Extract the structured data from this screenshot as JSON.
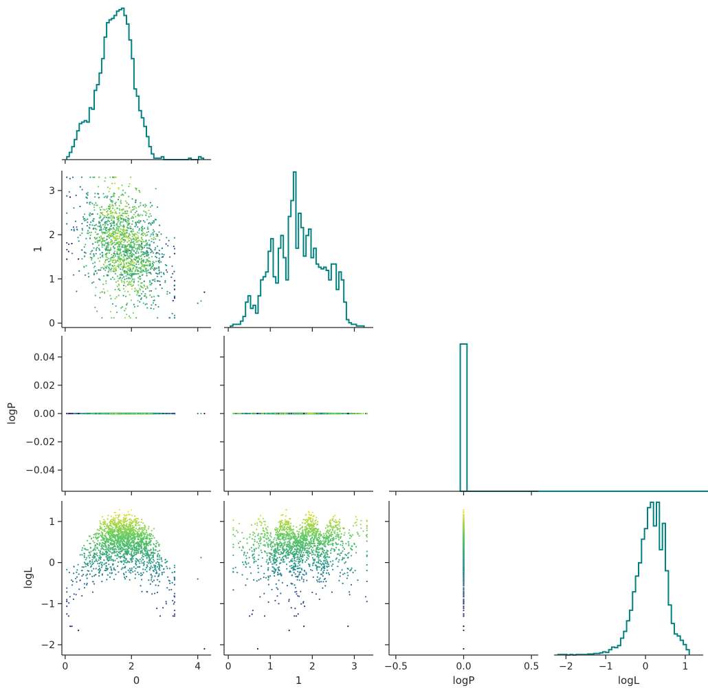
{
  "chart_data": {
    "type": "corner-pairplot",
    "variables": [
      "0",
      "1",
      "logP",
      "logL"
    ],
    "axis_labels": {
      "x": [
        "0",
        "1",
        "logP",
        "logL"
      ],
      "y": [
        "",
        "1",
        "logP",
        "logL"
      ]
    },
    "ranges": {
      "v0": [
        -0.1,
        4.4
      ],
      "v1": [
        -0.1,
        3.45
      ],
      "logP": [
        -0.055,
        0.055
      ],
      "logP_hist_x": [
        -0.55,
        0.55
      ],
      "logL": [
        -2.25,
        1.5
      ],
      "logL_hist_x": [
        -2.3,
        1.45
      ]
    },
    "ticks": {
      "v0": [
        0,
        2,
        4
      ],
      "v1": [
        0,
        1,
        2,
        3
      ],
      "logP": [
        -0.04,
        -0.02,
        0.0,
        0.02,
        0.04
      ],
      "logP_hist_x": [
        -0.5,
        0.0,
        0.5
      ],
      "logL": [
        -2,
        -1,
        0,
        1
      ]
    },
    "tick_labels": {
      "v0": [
        "0",
        "2",
        "4"
      ],
      "v1": [
        "0",
        "1",
        "2",
        "3"
      ],
      "logP": [
        "−0.04",
        "−0.02",
        "0.00",
        "0.02",
        "0.04"
      ],
      "logP_hist_x": [
        "−0.5",
        "0.0",
        "0.5"
      ],
      "logL": [
        "−2",
        "−1",
        "0",
        "1"
      ]
    },
    "histograms": {
      "v0": {
        "x0": 0.05,
        "width": 0.075,
        "counts": [
          2,
          5,
          9,
          14,
          20,
          25,
          26,
          27,
          26,
          36,
          35,
          48,
          52,
          60,
          70,
          85,
          95,
          97,
          98,
          100,
          103,
          104,
          105,
          100,
          94,
          83,
          70,
          49,
          44,
          34,
          29,
          23,
          16,
          9,
          4,
          1,
          1,
          1,
          2,
          0,
          0,
          0,
          0,
          0,
          0,
          0,
          0,
          0,
          0,
          1,
          0,
          0,
          0,
          2,
          1
        ]
      },
      "v1": {
        "x0": 0.05,
        "width": 0.06,
        "counts": [
          1,
          2,
          2,
          2,
          4,
          7,
          16,
          20,
          12,
          14,
          9,
          20,
          30,
          32,
          35,
          48,
          56,
          32,
          28,
          50,
          58,
          44,
          30,
          70,
          80,
          98,
          50,
          72,
          63,
          45,
          58,
          62,
          44,
          50,
          40,
          38,
          37,
          38,
          36,
          30,
          40,
          40,
          24,
          35,
          30,
          16,
          5,
          3,
          2,
          2,
          1,
          1,
          1
        ]
      },
      "logP": {
        "x0": -0.025,
        "width": 0.05,
        "counts": [
          1
        ]
      },
      "logL": {
        "x0": -2.2,
        "width": 0.075,
        "counts": [
          1,
          1,
          1,
          0,
          1,
          0,
          1,
          1,
          1,
          1,
          2,
          2,
          3,
          3,
          4,
          6,
          5,
          10,
          15,
          14,
          18,
          32,
          45,
          65,
          85,
          120,
          150,
          175,
          220,
          240,
          280,
          290,
          245,
          290,
          200,
          250,
          160,
          95,
          60,
          40,
          36,
          28,
          20,
          10
        ]
      }
    },
    "histogram_color": "#008080",
    "colormap": [
      "#440154",
      "#3b528b",
      "#21918c",
      "#5ec962",
      "#fde725"
    ],
    "color_by": "logL"
  }
}
